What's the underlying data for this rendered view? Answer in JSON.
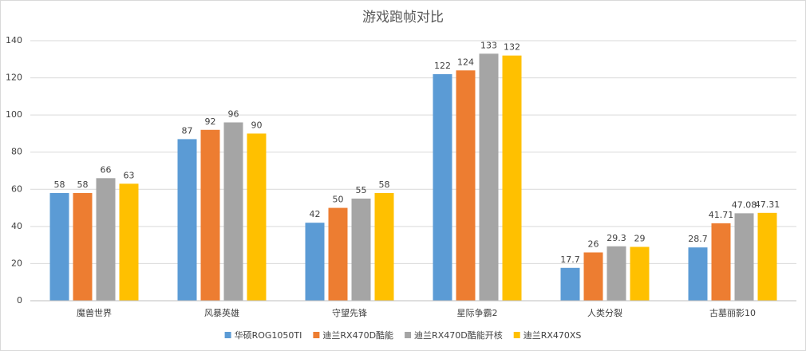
{
  "chart_data": {
    "type": "bar",
    "title": "游戏跑帧对比",
    "categories": [
      "魔兽世界",
      "风暴英雄",
      "守望先锋",
      "星际争霸2",
      "人类分裂",
      "古墓丽影10"
    ],
    "series": [
      {
        "name": "华硕ROG1050TI",
        "color": "#5b9bd5",
        "values": [
          58,
          87,
          42,
          122,
          17.7,
          28.7
        ]
      },
      {
        "name": "迪兰RX470D酷能",
        "color": "#ed7d31",
        "values": [
          58,
          92,
          50,
          124,
          26,
          41.71
        ]
      },
      {
        "name": "迪兰RX470D酷能开核",
        "color": "#a5a5a5",
        "values": [
          66,
          96,
          55,
          133,
          29.3,
          47.08
        ]
      },
      {
        "name": "迪兰RX470XS",
        "color": "#ffc000",
        "values": [
          63,
          90,
          58,
          132,
          29,
          47.31
        ]
      }
    ],
    "ylim": [
      0,
      140
    ],
    "yticks": [
      0,
      20,
      40,
      60,
      80,
      100,
      120,
      140
    ],
    "grid": true,
    "legend": "bottom"
  }
}
